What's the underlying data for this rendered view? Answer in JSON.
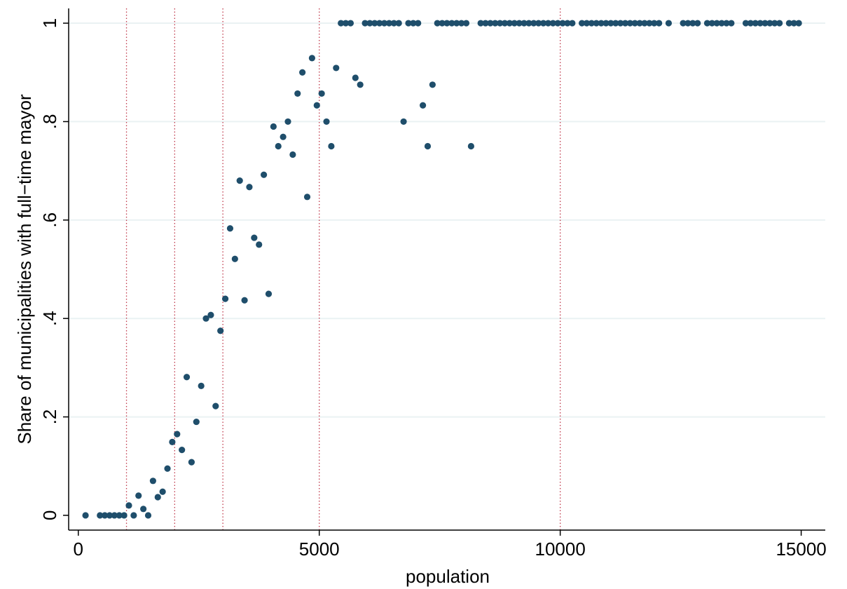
{
  "chart_data": {
    "type": "scatter",
    "xlabel": "population",
    "ylabel": "Share of municipalities with full−time mayor",
    "xlim": [
      -200,
      15500
    ],
    "ylim": [
      -0.03,
      1.03
    ],
    "x_ticks": [
      {
        "value": 0,
        "label": "0"
      },
      {
        "value": 5000,
        "label": "5000"
      },
      {
        "value": 10000,
        "label": "10000"
      },
      {
        "value": 15000,
        "label": "15000"
      }
    ],
    "y_ticks": [
      {
        "value": 0,
        "label": "0"
      },
      {
        "value": 0.2,
        "label": ".2"
      },
      {
        "value": 0.4,
        "label": ".4"
      },
      {
        "value": 0.6,
        "label": ".6"
      },
      {
        "value": 0.8,
        "label": ".8"
      },
      {
        "value": 1,
        "label": "1"
      }
    ],
    "grid": "horizontal",
    "reference_lines_x": [
      1000,
      2000,
      3000,
      5000,
      10000
    ],
    "colors": {
      "points": "#1f4e6b",
      "reference_lines": "#c0394b",
      "grid": "#eaf2f3"
    },
    "points": [
      [
        150,
        0
      ],
      [
        450,
        0
      ],
      [
        550,
        0
      ],
      [
        650,
        0
      ],
      [
        750,
        0
      ],
      [
        850,
        0
      ],
      [
        950,
        0
      ],
      [
        1050,
        0.02
      ],
      [
        1150,
        0
      ],
      [
        1250,
        0.04
      ],
      [
        1350,
        0.013
      ],
      [
        1450,
        0
      ],
      [
        1550,
        0.07
      ],
      [
        1650,
        0.037
      ],
      [
        1750,
        0.048
      ],
      [
        1850,
        0.095
      ],
      [
        1950,
        0.149
      ],
      [
        2050,
        0.165
      ],
      [
        2150,
        0.133
      ],
      [
        2250,
        0.281
      ],
      [
        2350,
        0.108
      ],
      [
        2450,
        0.19
      ],
      [
        2550,
        0.263
      ],
      [
        2650,
        0.4
      ],
      [
        2750,
        0.407
      ],
      [
        2850,
        0.222
      ],
      [
        2950,
        0.375
      ],
      [
        3050,
        0.44
      ],
      [
        3150,
        0.583
      ],
      [
        3250,
        0.521
      ],
      [
        3350,
        0.68
      ],
      [
        3450,
        0.437
      ],
      [
        3550,
        0.667
      ],
      [
        3650,
        0.564
      ],
      [
        3750,
        0.55
      ],
      [
        3850,
        0.692
      ],
      [
        3950,
        0.45
      ],
      [
        4050,
        0.79
      ],
      [
        4150,
        0.75
      ],
      [
        4250,
        0.769
      ],
      [
        4350,
        0.8
      ],
      [
        4450,
        0.733
      ],
      [
        4550,
        0.857
      ],
      [
        4650,
        0.9
      ],
      [
        4750,
        0.647
      ],
      [
        4850,
        0.929
      ],
      [
        4950,
        0.833
      ],
      [
        5050,
        0.857
      ],
      [
        5150,
        0.8
      ],
      [
        5250,
        0.75
      ],
      [
        5350,
        0.909
      ],
      [
        5450,
        1
      ],
      [
        5550,
        1
      ],
      [
        5650,
        1
      ],
      [
        5750,
        0.889
      ],
      [
        5850,
        0.875
      ],
      [
        5950,
        1
      ],
      [
        6050,
        1
      ],
      [
        6150,
        1
      ],
      [
        6250,
        1
      ],
      [
        6350,
        1
      ],
      [
        6450,
        1
      ],
      [
        6550,
        1
      ],
      [
        6650,
        1
      ],
      [
        6750,
        0.8
      ],
      [
        6850,
        1
      ],
      [
        6950,
        1
      ],
      [
        7050,
        1
      ],
      [
        7150,
        0.833
      ],
      [
        7250,
        0.75
      ],
      [
        7350,
        0.875
      ],
      [
        7450,
        1
      ],
      [
        7550,
        1
      ],
      [
        7650,
        1
      ],
      [
        7750,
        1
      ],
      [
        7850,
        1
      ],
      [
        7950,
        1
      ],
      [
        8050,
        1
      ],
      [
        8150,
        0.75
      ],
      [
        8350,
        1
      ],
      [
        8450,
        1
      ],
      [
        8550,
        1
      ],
      [
        8650,
        1
      ],
      [
        8750,
        1
      ],
      [
        8850,
        1
      ],
      [
        8950,
        1
      ],
      [
        9050,
        1
      ],
      [
        9150,
        1
      ],
      [
        9250,
        1
      ],
      [
        9350,
        1
      ],
      [
        9450,
        1
      ],
      [
        9550,
        1
      ],
      [
        9650,
        1
      ],
      [
        9750,
        1
      ],
      [
        9850,
        1
      ],
      [
        9950,
        1
      ],
      [
        10050,
        1
      ],
      [
        10150,
        1
      ],
      [
        10250,
        1
      ],
      [
        10450,
        1
      ],
      [
        10550,
        1
      ],
      [
        10650,
        1
      ],
      [
        10750,
        1
      ],
      [
        10850,
        1
      ],
      [
        10950,
        1
      ],
      [
        11050,
        1
      ],
      [
        11150,
        1
      ],
      [
        11250,
        1
      ],
      [
        11350,
        1
      ],
      [
        11450,
        1
      ],
      [
        11550,
        1
      ],
      [
        11650,
        1
      ],
      [
        11750,
        1
      ],
      [
        11850,
        1
      ],
      [
        11950,
        1
      ],
      [
        12050,
        1
      ],
      [
        12250,
        1
      ],
      [
        12550,
        1
      ],
      [
        12650,
        1
      ],
      [
        12750,
        1
      ],
      [
        12850,
        1
      ],
      [
        13050,
        1
      ],
      [
        13150,
        1
      ],
      [
        13250,
        1
      ],
      [
        13350,
        1
      ],
      [
        13450,
        1
      ],
      [
        13550,
        1
      ],
      [
        13850,
        1
      ],
      [
        13950,
        1
      ],
      [
        14050,
        1
      ],
      [
        14150,
        1
      ],
      [
        14250,
        1
      ],
      [
        14350,
        1
      ],
      [
        14450,
        1
      ],
      [
        14550,
        1
      ],
      [
        14750,
        1
      ],
      [
        14850,
        1
      ],
      [
        14950,
        1
      ]
    ]
  }
}
